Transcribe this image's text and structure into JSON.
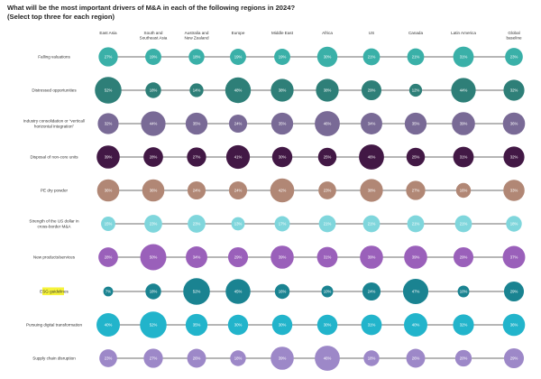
{
  "chart_data": {
    "type": "bubble-grid",
    "title": "What will be the most important drivers of M&A in each of the following regions in 2024? (Select top three for each region)",
    "columns": [
      [
        "East Asia"
      ],
      [
        "South and",
        "Southeast Asia"
      ],
      [
        "Australia and",
        "New Zealand"
      ],
      [
        "Europe"
      ],
      [
        "Middle East"
      ],
      [
        "Africa"
      ],
      [
        "US"
      ],
      [
        "Canada"
      ],
      [
        "Latin America"
      ],
      [
        "Global",
        "baseline"
      ]
    ],
    "highlighted_row": "ESG guidelines",
    "highlight_color": "#f6f33a",
    "unit": "%",
    "rows": [
      {
        "label": [
          "Falling valuations"
        ],
        "color": "#3ab0a8",
        "values": [
          27,
          19,
          18,
          19,
          19,
          30,
          21,
          21,
          31,
          23
        ]
      },
      {
        "label": [
          "Distressed opportunities"
        ],
        "color": "#2e7f78",
        "values": [
          52,
          18,
          14,
          48,
          38,
          38,
          29,
          12,
          44,
          32
        ]
      },
      {
        "label": [
          "Industry consolidation or “vertical/",
          "horizontal integration”"
        ],
        "color": "#796a96",
        "values": [
          32,
          44,
          35,
          24,
          35,
          46,
          34,
          35,
          39,
          36
        ]
      },
      {
        "label": [
          "Disposal of non-core units"
        ],
        "color": "#421845",
        "values": [
          39,
          28,
          27,
          41,
          30,
          25,
          46,
          25,
          31,
          32
        ]
      },
      {
        "label": [
          "PE dry powder"
        ],
        "color": "#b18775",
        "values": [
          36,
          36,
          24,
          24,
          42,
          23,
          38,
          27,
          16,
          33
        ]
      },
      {
        "label": [
          "Strength of the US dollar in",
          "cross-border M&A"
        ],
        "color": "#7fd6dc",
        "values": [
          15,
          23,
          23,
          13,
          17,
          21,
          21,
          21,
          21,
          18
        ]
      },
      {
        "label": [
          "New products/services"
        ],
        "color": "#9a60ba",
        "values": [
          28,
          50,
          34,
          29,
          39,
          31,
          39,
          39,
          29,
          37
        ]
      },
      {
        "label": [
          "ESG guidelines"
        ],
        "color": "#1a8391",
        "values": [
          7,
          18,
          52,
          45,
          16,
          10,
          24,
          47,
          10,
          29
        ]
      },
      {
        "label": [
          "Pursuing digital transformation"
        ],
        "color": "#22b4cb",
        "values": [
          40,
          52,
          35,
          30,
          30,
          30,
          31,
          40,
          32,
          36
        ]
      },
      {
        "label": [
          "Supply chain disruption"
        ],
        "color": "#9d88c8",
        "values": [
          23,
          27,
          26,
          18,
          39,
          46,
          18,
          26,
          20,
          29
        ]
      }
    ]
  }
}
